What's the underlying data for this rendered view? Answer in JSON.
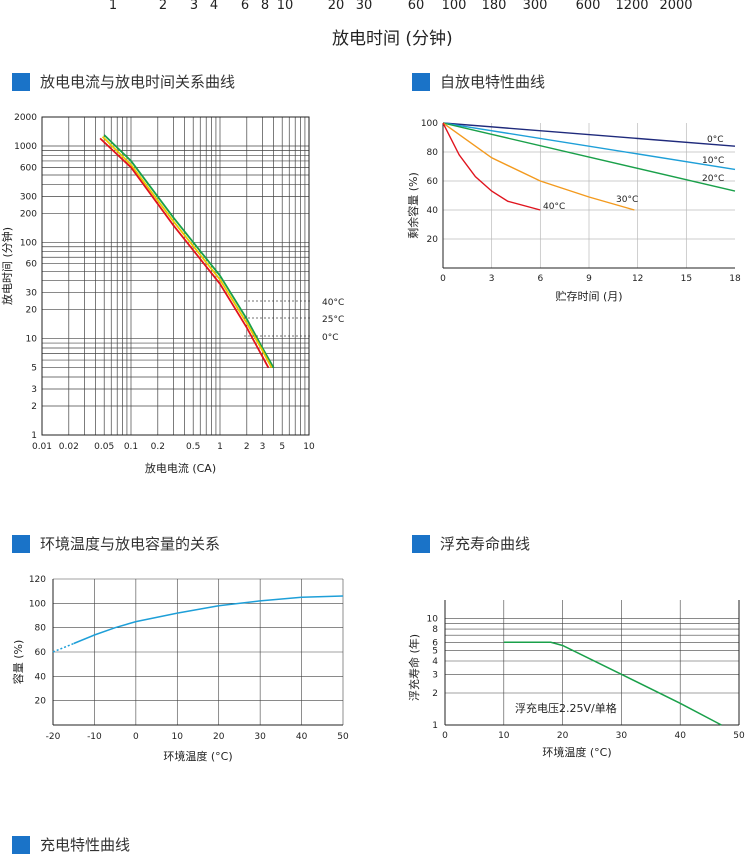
{
  "header_axis": {
    "ticks": [
      "1",
      "2",
      "3",
      "4",
      "6",
      "8",
      "10",
      "20",
      "30",
      "60",
      "100",
      "180",
      "300",
      "600",
      "1200",
      "2000"
    ],
    "title": "放电时间 (分钟)"
  },
  "sections": {
    "s1": "放电电流与放电时间关系曲线",
    "s2": "自放电特性曲线",
    "s3": "环境温度与放电容量的关系",
    "s4": "浮充寿命曲线",
    "s5": "充电特性曲线"
  },
  "colors": {
    "accent": "#1a73c8",
    "red": "#e0141e",
    "orange": "#f39a1e",
    "green": "#1aa04a",
    "blue": "#1e9fd8",
    "navy": "#1f2a7c",
    "yellow": "#e8c800",
    "grid": "#444444"
  },
  "chart_data": [
    {
      "type": "line",
      "xlabel": "放电电流 (CA)",
      "ylabel": "放电时间 (分钟)",
      "xscale": "log",
      "yscale": "log",
      "xlim": [
        0.01,
        10
      ],
      "ylim": [
        1,
        2000
      ],
      "xticks": [
        "0.01",
        "0.02",
        "0.05",
        "0.1",
        "0.2",
        "0.5",
        "1",
        "2",
        "3",
        "5",
        "10"
      ],
      "yticks": [
        "1",
        "2",
        "3",
        "5",
        "10",
        "20",
        "30",
        "60",
        "100",
        "200",
        "300",
        "600",
        "1000",
        "2000"
      ],
      "series": [
        {
          "name": "40°C",
          "color": "#1aa04a",
          "points": [
            [
              0.05,
              1300
            ],
            [
              0.1,
              700
            ],
            [
              0.3,
              180
            ],
            [
              1,
              45
            ],
            [
              2,
              16
            ],
            [
              3,
              8
            ],
            [
              4,
              5
            ]
          ]
        },
        {
          "name": "25°C",
          "color": "#e8c800",
          "points": [
            [
              0.048,
              1250
            ],
            [
              0.1,
              640
            ],
            [
              0.3,
              165
            ],
            [
              1,
              41
            ],
            [
              2,
              14.5
            ],
            [
              3,
              7.5
            ],
            [
              3.8,
              5
            ]
          ]
        },
        {
          "name": "0°C",
          "color": "#e0141e",
          "points": [
            [
              0.045,
              1200
            ],
            [
              0.1,
              600
            ],
            [
              0.3,
              150
            ],
            [
              1,
              37
            ],
            [
              2,
              13
            ],
            [
              3,
              6.5
            ],
            [
              3.5,
              5
            ]
          ]
        }
      ]
    },
    {
      "type": "line",
      "xlabel": "贮存时间 (月)",
      "ylabel": "剩余容量 (%)",
      "xlim": [
        0,
        18
      ],
      "ylim": [
        0,
        100
      ],
      "xticks": [
        "0",
        "3",
        "6",
        "9",
        "12",
        "15",
        "18"
      ],
      "yticks": [
        "20",
        "40",
        "60",
        "80",
        "100"
      ],
      "series": [
        {
          "name": "0°C",
          "color": "#1f2a7c",
          "points": [
            [
              0,
              100
            ],
            [
              18,
              84
            ]
          ]
        },
        {
          "name": "10°C",
          "color": "#1e9fd8",
          "points": [
            [
              0,
              100
            ],
            [
              18,
              68
            ]
          ]
        },
        {
          "name": "20°C",
          "color": "#1aa04a",
          "points": [
            [
              0,
              100
            ],
            [
              18,
              53
            ]
          ]
        },
        {
          "name": "30°C",
          "color": "#f39a1e",
          "points": [
            [
              0,
              100
            ],
            [
              3,
              76
            ],
            [
              6,
              60
            ],
            [
              9,
              49
            ],
            [
              11.8,
              40
            ]
          ]
        },
        {
          "name": "40°C",
          "color": "#e0141e",
          "points": [
            [
              0,
              100
            ],
            [
              1,
              78
            ],
            [
              2,
              63
            ],
            [
              3,
              53
            ],
            [
              4,
              46
            ],
            [
              6,
              40
            ]
          ]
        }
      ]
    },
    {
      "type": "line",
      "xlabel": "环境温度 (°C)",
      "ylabel": "容量 (%)",
      "xlim": [
        -20,
        50
      ],
      "ylim": [
        0,
        120
      ],
      "xticks": [
        "-20",
        "-10",
        "0",
        "10",
        "20",
        "30",
        "40",
        "50"
      ],
      "yticks": [
        "20",
        "40",
        "60",
        "80",
        "100",
        "120"
      ],
      "series": [
        {
          "color": "#1e9fd8",
          "points": [
            [
              -20,
              60
            ],
            [
              -15,
              67
            ],
            [
              -10,
              74
            ],
            [
              -5,
              80
            ],
            [
              0,
              85
            ],
            [
              10,
              92
            ],
            [
              20,
              98
            ],
            [
              30,
              102
            ],
            [
              40,
              105
            ],
            [
              50,
              106
            ]
          ]
        }
      ]
    },
    {
      "type": "line",
      "xlabel": "环境温度 (°C)",
      "ylabel": "浮充寿命 (年)",
      "yscale": "log",
      "xlim": [
        0,
        50
      ],
      "ylim": [
        1,
        15
      ],
      "xticks": [
        "0",
        "10",
        "20",
        "30",
        "40",
        "50"
      ],
      "yticks": [
        "1",
        "2",
        "3",
        "4",
        "5",
        "6",
        "8",
        "10"
      ],
      "annotation": "浮充电压2.25V/单格",
      "series": [
        {
          "color": "#1aa04a",
          "points": [
            [
              10,
              6
            ],
            [
              18,
              6
            ],
            [
              20,
              5.6
            ],
            [
              30,
              3
            ],
            [
              40,
              1.6
            ],
            [
              47,
              1
            ]
          ]
        }
      ]
    }
  ]
}
